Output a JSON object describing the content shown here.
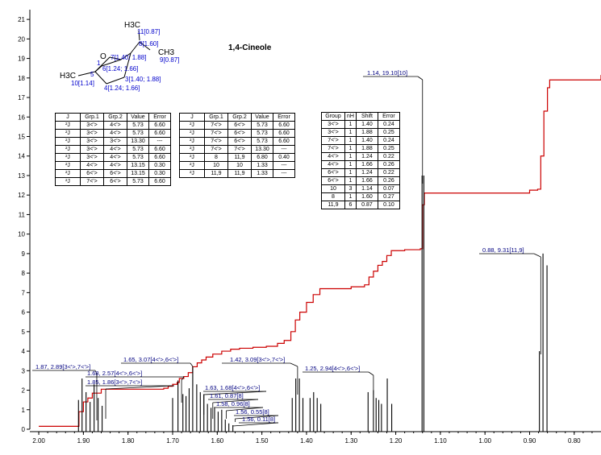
{
  "chart_data": {
    "type": "line",
    "title": "1,4-Cineole",
    "xlabel": "",
    "ylabel": "",
    "xlim": [
      2.02,
      0.74
    ],
    "ylim": [
      0,
      21.5
    ],
    "x_ticks": [
      "2.00",
      "1.90",
      "1.80",
      "1.70",
      "1.60",
      "1.50",
      "1.40",
      "1.30",
      "1.20",
      "1.10",
      "1.00",
      "0.90",
      "0.80"
    ],
    "x_tick_values": [
      2.0,
      1.9,
      1.8,
      1.7,
      1.6,
      1.5,
      1.4,
      1.3,
      1.2,
      1.1,
      1.0,
      0.9,
      0.8
    ],
    "y_ticks": [
      "0",
      "1",
      "2",
      "3",
      "4",
      "5",
      "6",
      "7",
      "8",
      "9",
      "10",
      "11",
      "12",
      "13",
      "14",
      "15",
      "16",
      "17",
      "18",
      "19",
      "20",
      "21"
    ],
    "peaks": [
      {
        "x": 1.911,
        "h": 1.5
      },
      {
        "x": 1.903,
        "h": 2.6
      },
      {
        "x": 1.894,
        "h": 1.9
      },
      {
        "x": 1.885,
        "h": 1.4
      },
      {
        "x": 1.876,
        "h": 2.3
      },
      {
        "x": 1.867,
        "h": 1.6
      },
      {
        "x": 1.858,
        "h": 1.2
      },
      {
        "x": 1.7,
        "h": 1.6
      },
      {
        "x": 1.688,
        "h": 2.5
      },
      {
        "x": 1.677,
        "h": 1.8
      },
      {
        "x": 1.67,
        "h": 1.7
      },
      {
        "x": 1.663,
        "h": 2.1
      },
      {
        "x": 1.655,
        "h": 3.2
      },
      {
        "x": 1.646,
        "h": 2.3
      },
      {
        "x": 1.638,
        "h": 1.9
      },
      {
        "x": 1.63,
        "h": 1.8
      },
      {
        "x": 1.622,
        "h": 1.3
      },
      {
        "x": 1.614,
        "h": 1.1
      },
      {
        "x": 1.606,
        "h": 1.1
      },
      {
        "x": 1.598,
        "h": 0.9
      },
      {
        "x": 1.59,
        "h": 1.0
      },
      {
        "x": 1.582,
        "h": 0.5
      },
      {
        "x": 1.574,
        "h": 0.3
      },
      {
        "x": 1.565,
        "h": 0.2
      },
      {
        "x": 1.432,
        "h": 1.6
      },
      {
        "x": 1.424,
        "h": 2.6
      },
      {
        "x": 1.416,
        "h": 2.6
      },
      {
        "x": 1.408,
        "h": 1.6
      },
      {
        "x": 1.392,
        "h": 1.6
      },
      {
        "x": 1.384,
        "h": 1.9
      },
      {
        "x": 1.376,
        "h": 1.6
      },
      {
        "x": 1.368,
        "h": 1.3
      },
      {
        "x": 1.262,
        "h": 1.9
      },
      {
        "x": 1.25,
        "h": 2.0
      },
      {
        "x": 1.244,
        "h": 1.6
      },
      {
        "x": 1.238,
        "h": 1.5
      },
      {
        "x": 1.232,
        "h": 1.3
      },
      {
        "x": 1.219,
        "h": 2.6
      },
      {
        "x": 1.209,
        "h": 1.3
      },
      {
        "x": 1.141,
        "h": 13.0
      },
      {
        "x": 1.137,
        "h": 13.0
      },
      {
        "x": 0.878,
        "h": 4.0
      },
      {
        "x": 0.87,
        "h": 9.0
      },
      {
        "x": 0.861,
        "h": 8.4
      }
    ],
    "integral": [
      [
        2.0,
        0.15
      ],
      [
        1.92,
        0.15
      ],
      [
        1.91,
        0.9
      ],
      [
        1.9,
        1.4
      ],
      [
        1.89,
        1.6
      ],
      [
        1.88,
        1.85
      ],
      [
        1.87,
        1.85
      ],
      [
        1.86,
        2.05
      ],
      [
        1.72,
        2.1
      ],
      [
        1.71,
        2.2
      ],
      [
        1.7,
        2.3
      ],
      [
        1.69,
        2.4
      ],
      [
        1.685,
        2.6
      ],
      [
        1.675,
        2.7
      ],
      [
        1.665,
        2.9
      ],
      [
        1.655,
        3.2
      ],
      [
        1.645,
        3.4
      ],
      [
        1.635,
        3.55
      ],
      [
        1.625,
        3.7
      ],
      [
        1.61,
        3.85
      ],
      [
        1.59,
        4.0
      ],
      [
        1.57,
        4.1
      ],
      [
        1.55,
        4.15
      ],
      [
        1.52,
        4.2
      ],
      [
        1.49,
        4.25
      ],
      [
        1.465,
        4.4
      ],
      [
        1.45,
        4.55
      ],
      [
        1.435,
        5.0
      ],
      [
        1.425,
        5.6
      ],
      [
        1.415,
        6.0
      ],
      [
        1.4,
        6.5
      ],
      [
        1.385,
        6.9
      ],
      [
        1.37,
        7.2
      ],
      [
        1.3,
        7.3
      ],
      [
        1.27,
        7.4
      ],
      [
        1.26,
        7.8
      ],
      [
        1.25,
        8.1
      ],
      [
        1.24,
        8.4
      ],
      [
        1.23,
        8.6
      ],
      [
        1.22,
        8.9
      ],
      [
        1.21,
        9.15
      ],
      [
        1.18,
        9.2
      ],
      [
        1.145,
        9.25
      ],
      [
        1.14,
        11.5
      ],
      [
        1.136,
        12.1
      ],
      [
        0.9,
        12.25
      ],
      [
        0.882,
        12.3
      ],
      [
        0.875,
        14.0
      ],
      [
        0.868,
        16.3
      ],
      [
        0.86,
        17.5
      ],
      [
        0.855,
        17.9
      ],
      [
        0.74,
        18.15
      ]
    ],
    "annotations": [
      {
        "label": "1.14, 19.10[10]",
        "x": 1.14
      },
      {
        "label": "0.88, 9.31[11,9]",
        "x": 0.875
      },
      {
        "label": "1.87, 2.89[3<'>,7<'>]",
        "x": 1.87
      },
      {
        "label": "1.65, 3.07[4<'>,6<'>]",
        "x": 1.655
      },
      {
        "label": "1.68, 2.57[4<'>,6<'>]",
        "x": 1.68
      },
      {
        "label": "1.85, 1.86[3<'>,7<'>]",
        "x": 1.85
      },
      {
        "label": "1.42, 3.09[3<'>,7<'>]",
        "x": 1.42
      },
      {
        "label": "1.25, 2.94[4<'>,6<'>]",
        "x": 1.25
      },
      {
        "label": "1.63, 1.68[4<'>,6<'>]",
        "x": 1.63
      },
      {
        "label": "1.61, 0.87[8]",
        "x": 1.61
      },
      {
        "label": "1.58, 0.96[8]",
        "x": 1.58
      },
      {
        "label": "1.56, 0.55[8]",
        "x": 1.56
      },
      {
        "label": "1.56, 0.11[8]",
        "x": 1.565
      }
    ],
    "colors": {
      "spectrum": "#000000",
      "integral": "#cc0000",
      "annotation_text": "#000080",
      "axis": "#000000"
    }
  },
  "molecule": {
    "atoms": [
      {
        "label": "H3C"
      },
      {
        "label": "11[0.87]"
      },
      {
        "label": "8[1.60]"
      },
      {
        "label": "CH3"
      },
      {
        "label": "9[0.87]"
      },
      {
        "label": "O"
      },
      {
        "label": "7[1.40; 1.88]"
      },
      {
        "label": "6[1.24; 1.66]"
      },
      {
        "label": "H3C"
      },
      {
        "label": "10[1.14]"
      },
      {
        "label": "5"
      },
      {
        "label": "1"
      },
      {
        "label": "3[1.40; 1.88]"
      },
      {
        "label": "4[1.24; 1.66]"
      }
    ]
  },
  "table_j1": {
    "headers": [
      "J",
      "Grp.1",
      "Grp.2",
      "Value",
      "Error"
    ],
    "rows": [
      [
        "²J",
        "3<'>",
        "4<'>",
        "5.73",
        "6.60"
      ],
      [
        "²J",
        "3<'>",
        "4<'>",
        "5.73",
        "6.60"
      ],
      [
        "²J",
        "3<'>",
        "3<'>",
        "13.30",
        "---"
      ],
      [
        "²J",
        "3<'>",
        "4<'>",
        "5.73",
        "6.60"
      ],
      [
        "²J",
        "3<'>",
        "4<'>",
        "5.73",
        "6.60"
      ],
      [
        "²J",
        "4<'>",
        "4<'>",
        "13.15",
        "0.30"
      ],
      [
        "²J",
        "6<'>",
        "6<'>",
        "13.15",
        "0.30"
      ],
      [
        "²J",
        "7<'>",
        "6<'>",
        "5.73",
        "6.60"
      ]
    ]
  },
  "table_j2": {
    "headers": [
      "J",
      "Grp.1",
      "Grp.2",
      "Value",
      "Error"
    ],
    "rows": [
      [
        "²J",
        "7<'>",
        "6<'>",
        "5.73",
        "6.60"
      ],
      [
        "²J",
        "7<'>",
        "6<'>",
        "5.73",
        "6.60"
      ],
      [
        "²J",
        "7<'>",
        "6<'>",
        "5.73",
        "6.60"
      ],
      [
        "²J",
        "7<'>",
        "7<'>",
        "13.30",
        "---"
      ],
      [
        "²J",
        "8",
        "11,9",
        "6.80",
        "0.40"
      ],
      [
        "²J",
        "10",
        "10",
        "1.33",
        "---"
      ],
      [
        "²J",
        "11,9",
        "11,9",
        "1.33",
        "---"
      ]
    ]
  },
  "table_shift": {
    "headers": [
      "Group",
      "nH",
      "Shift",
      "Error"
    ],
    "rows": [
      [
        "3<'>",
        "1",
        "1.40",
        "0.24"
      ],
      [
        "3<'>",
        "1",
        "1.88",
        "0.25"
      ],
      [
        "7<'>",
        "1",
        "1.40",
        "0.24"
      ],
      [
        "7<'>",
        "1",
        "1.88",
        "0.25"
      ],
      [
        "4<'>",
        "1",
        "1.24",
        "0.22"
      ],
      [
        "4<'>",
        "1",
        "1.66",
        "0.26"
      ],
      [
        "6<'>",
        "1",
        "1.24",
        "0.22"
      ],
      [
        "6<'>",
        "1",
        "1.66",
        "0.26"
      ],
      [
        "10",
        "3",
        "1.14",
        "0.07"
      ],
      [
        "8",
        "1",
        "1.60",
        "0.27"
      ],
      [
        "11,9",
        "6",
        "0.87",
        "0.10"
      ]
    ]
  }
}
